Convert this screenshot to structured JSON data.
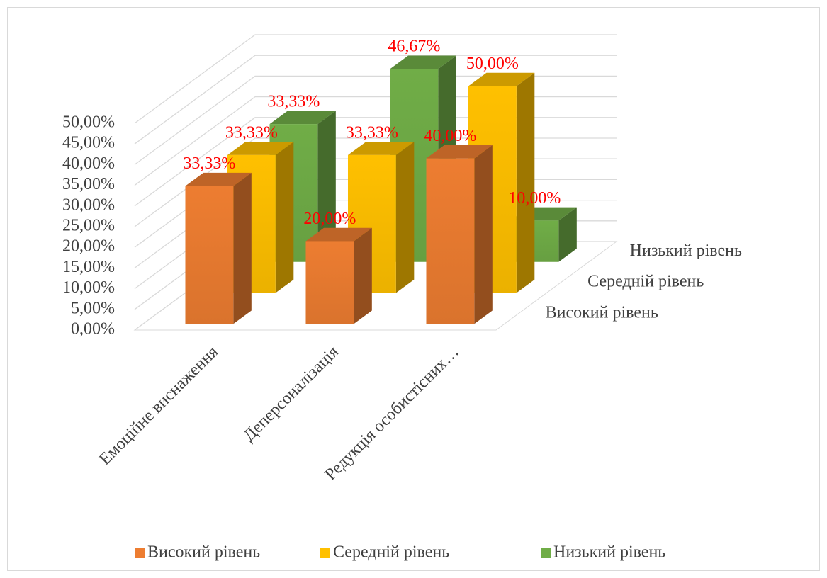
{
  "chart_data": {
    "type": "bar3d",
    "categories": [
      "Емоційне виснаження",
      "Деперсоналізація",
      "Редукція особистісних…"
    ],
    "series": [
      {
        "name": "Високий рівень",
        "color": "#ed7d31",
        "values": [
          33.33,
          20,
          40
        ],
        "value_labels": [
          "33,33%",
          "20,00%",
          "40,00%"
        ]
      },
      {
        "name": "Середній рівень",
        "color": "#ffc000",
        "values": [
          33.33,
          33.33,
          50
        ],
        "value_labels": [
          "33,33%",
          "33,33%",
          "50,00%"
        ]
      },
      {
        "name": "Низький рівень",
        "color": "#70ad47",
        "values": [
          33.33,
          46.67,
          10
        ],
        "value_labels": [
          "33,33%",
          "46,67%",
          "10,00%"
        ]
      }
    ],
    "ylim": [
      0,
      50
    ],
    "yticks": [
      {
        "value": 0,
        "label": "0,00%"
      },
      {
        "value": 5,
        "label": "5,00%"
      },
      {
        "value": 10,
        "label": "10,00%"
      },
      {
        "value": 15,
        "label": "15,00%"
      },
      {
        "value": 20,
        "label": "20,00%"
      },
      {
        "value": 25,
        "label": "25,00%"
      },
      {
        "value": 30,
        "label": "30,00%"
      },
      {
        "value": 35,
        "label": "35,00%"
      },
      {
        "value": 40,
        "label": "40,00%"
      },
      {
        "value": 45,
        "label": "45,00%"
      },
      {
        "value": 50,
        "label": "50,00%"
      }
    ],
    "grid": true,
    "value_label_color": "#ff0000",
    "legend": "bottom"
  }
}
